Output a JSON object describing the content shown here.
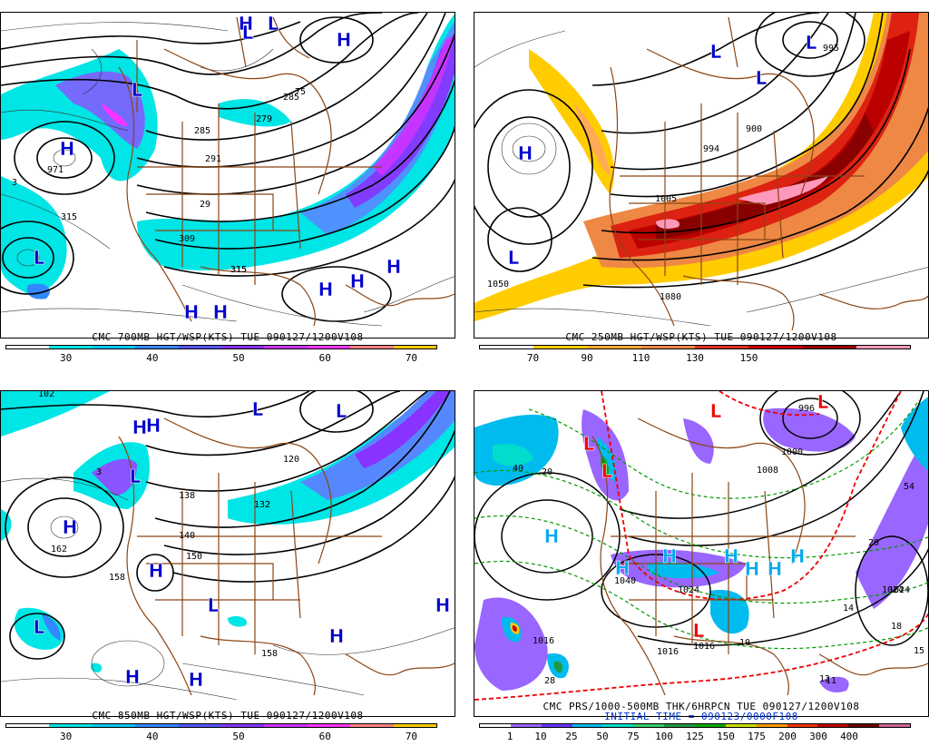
{
  "panels": [
    {
      "id": "p700",
      "title": "CMC 700MB HGT/WSP(KTS)  TUE 090127/1200V108",
      "colorbar": {
        "colors": [
          "#ffffff",
          "#00e5e5",
          "#00c8ff",
          "#3388ff",
          "#5555ff",
          "#8833ff",
          "#cc33ff",
          "#ff33ff",
          "#ff8080",
          "#ffcc00"
        ],
        "ticks": [
          "30",
          "40",
          "50",
          "60",
          "70"
        ]
      },
      "symbols": [
        {
          "t": "H",
          "c": "#0000cc"
        },
        {
          "t": "L",
          "c": "#0000cc"
        },
        {
          "t": "L",
          "c": "#0000cc"
        },
        {
          "t": "L",
          "c": "#0000cc"
        },
        {
          "t": "H",
          "c": "#0000cc"
        },
        {
          "t": "H",
          "c": "#0000cc"
        },
        {
          "t": "H",
          "c": "#0000cc"
        },
        {
          "t": "H",
          "c": "#0000cc"
        },
        {
          "t": "H",
          "c": "#0000cc"
        },
        {
          "t": "H",
          "c": "#0000cc"
        },
        {
          "t": "L",
          "c": "#0000cc"
        },
        {
          "t": "H",
          "c": "#0000cc"
        }
      ],
      "labels": [
        "971",
        "315",
        "315",
        "285",
        "291",
        "29",
        "309",
        "315",
        "285",
        "3",
        "279",
        "75"
      ]
    },
    {
      "id": "p250",
      "title": "CMC 250MB HGT/WSP(KTS)  TUE 090127/1200V108",
      "colorbar": {
        "colors": [
          "#ffffff",
          "#ffcc00",
          "#ffaa33",
          "#ee8844",
          "#dd3322",
          "#cc0000",
          "#990000",
          "#ff99bb"
        ],
        "ticks": [
          "70",
          "90",
          "110",
          "130",
          "150"
        ]
      },
      "symbols": [
        {
          "t": "H",
          "c": "#0000cc"
        },
        {
          "t": "L",
          "c": "#0000cc"
        },
        {
          "t": "L",
          "c": "#0000cc"
        },
        {
          "t": "L",
          "c": "#0000cc"
        },
        {
          "t": "L",
          "c": "#0000cc"
        }
      ],
      "labels": [
        "1050",
        "1005",
        "1080",
        "900",
        "994",
        "995"
      ]
    },
    {
      "id": "p850",
      "title": "CMC 850MB HGT/WSP(KTS)  TUE 090127/1200V108",
      "colorbar": {
        "colors": [
          "#ffffff",
          "#00e5e5",
          "#00c8ff",
          "#3388ff",
          "#5555ff",
          "#8833ff",
          "#cc33ff",
          "#ff33ff",
          "#ff8080",
          "#ffcc00"
        ],
        "ticks": [
          "30",
          "40",
          "50",
          "60",
          "70"
        ]
      },
      "symbols": [
        {
          "t": "H",
          "c": "#0000cc"
        },
        {
          "t": "L",
          "c": "#0000cc"
        },
        {
          "t": "H",
          "c": "#0000cc"
        },
        {
          "t": "L",
          "c": "#0000cc"
        },
        {
          "t": "H",
          "c": "#0000cc"
        },
        {
          "t": "H",
          "c": "#0000cc"
        },
        {
          "t": "H",
          "c": "#0000cc"
        },
        {
          "t": "H",
          "c": "#0000cc"
        },
        {
          "t": "L",
          "c": "#0000cc"
        },
        {
          "t": "H",
          "c": "#0000cc"
        },
        {
          "t": "L",
          "c": "#0000cc"
        },
        {
          "t": "H",
          "c": "#0000cc"
        },
        {
          "t": "L",
          "c": "#0000cc"
        }
      ],
      "labels": [
        "162",
        "158",
        "150",
        "140",
        "138",
        "132",
        "120",
        "158",
        "3",
        "102"
      ]
    },
    {
      "id": "pprs",
      "title": "CMC PRS/1000-500MB THK/6HRPCN  TUE 090127/1200V108",
      "subtitle": "INITIAL TIME = 090123/0000F108",
      "colorbar": {
        "colors": [
          "#ffffff",
          "#9966ff",
          "#6633ff",
          "#00bbee",
          "#00ddcc",
          "#33cc66",
          "#229944",
          "#00aa00",
          "#ccdd00",
          "#ff9900",
          "#ee3300",
          "#bb0000",
          "#660000",
          "#cc6699"
        ],
        "ticks": [
          "1",
          "10",
          "25",
          "50",
          "75",
          "100",
          "125",
          "150",
          "175",
          "200",
          "300",
          "400"
        ]
      },
      "symbols": [
        {
          "t": "H",
          "c": "#00aaee"
        },
        {
          "t": "L",
          "c": "#ee0000"
        },
        {
          "t": "L",
          "c": "#ee0000"
        },
        {
          "t": "H",
          "c": "#00aaee"
        },
        {
          "t": "H",
          "c": "#00aaee"
        },
        {
          "t": "H",
          "c": "#00aaee"
        },
        {
          "t": "H",
          "c": "#00aaee"
        },
        {
          "t": "H",
          "c": "#00aaee"
        },
        {
          "t": "H",
          "c": "#00aaee"
        },
        {
          "t": "L",
          "c": "#ee0000"
        },
        {
          "t": "L",
          "c": "#ee0000"
        },
        {
          "t": "L",
          "c": "#ee0000"
        }
      ],
      "labels": [
        "1040",
        "1024",
        "1016",
        "1016",
        "1016",
        "1024",
        "1000",
        "1008",
        "996",
        "20",
        "54",
        "14",
        "10",
        "1024",
        "18",
        "15",
        "20",
        "40",
        "12",
        "11",
        "28"
      ]
    }
  ]
}
